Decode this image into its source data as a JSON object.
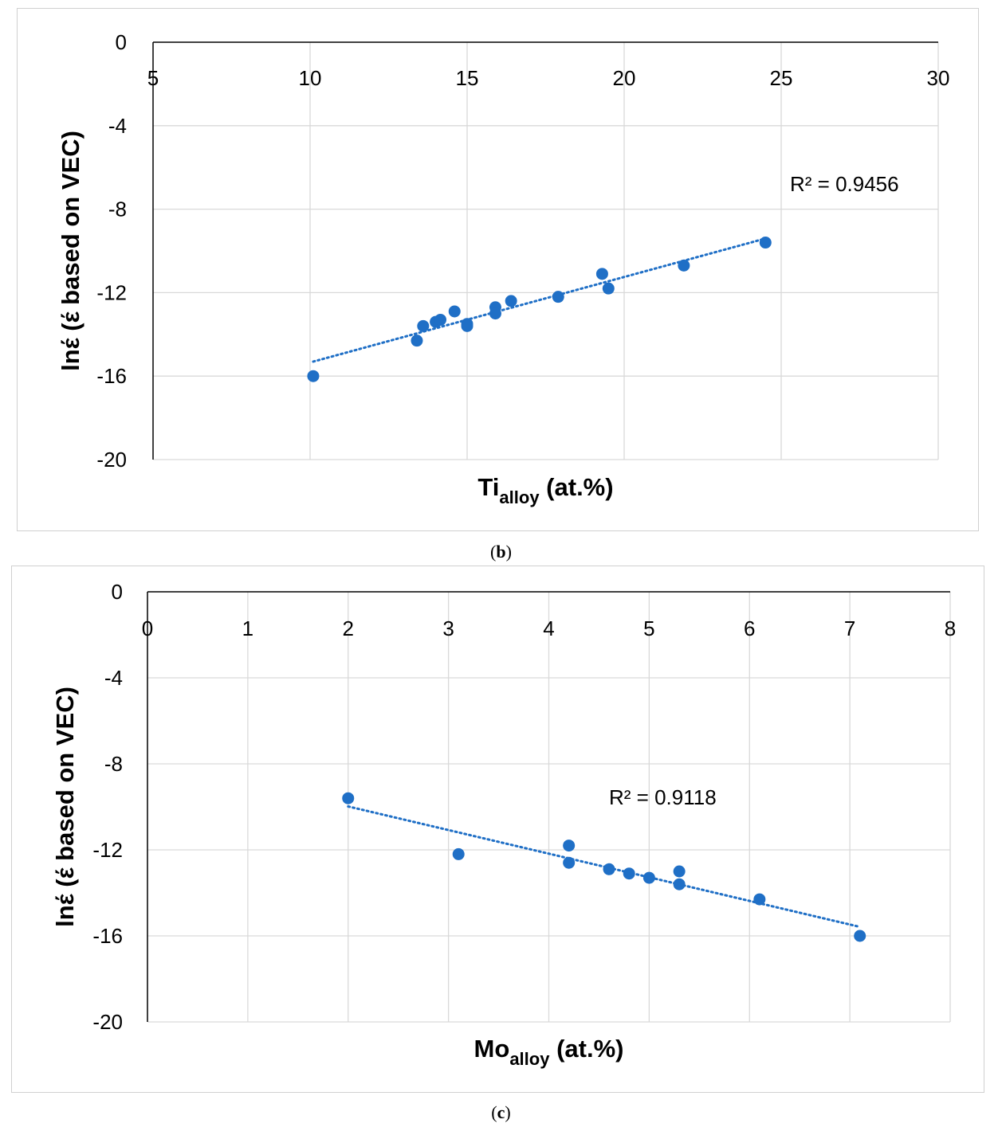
{
  "chart_data": [
    {
      "type": "scatter",
      "panel": "b",
      "caption_prefix": "(",
      "caption_letter": "b",
      "caption_suffix": ")",
      "ylabel": "lnέ (έ based on VEC)",
      "xlabel_main": "Ti",
      "xlabel_sub": "alloy",
      "xlabel_unit": " (at.%)",
      "xlim": [
        5,
        30
      ],
      "ylim": [
        -20,
        0
      ],
      "xticks": [
        "5",
        "10",
        "15",
        "20",
        "25",
        "30"
      ],
      "yticks": [
        "0",
        "-4",
        "-8",
        "-12",
        "-16",
        "-20"
      ],
      "grid": true,
      "trendline": {
        "type": "linear",
        "dotted": true,
        "x_start": 10.1,
        "x_end": 24.5,
        "r2_label": "R² = 0.9456"
      },
      "marker_color": "#1f6fc6",
      "points": [
        {
          "x": 10.1,
          "y": -16.0
        },
        {
          "x": 13.4,
          "y": -14.3
        },
        {
          "x": 13.6,
          "y": -13.6
        },
        {
          "x": 14.0,
          "y": -13.4
        },
        {
          "x": 14.15,
          "y": -13.3
        },
        {
          "x": 14.6,
          "y": -12.9
        },
        {
          "x": 15.0,
          "y": -13.5
        },
        {
          "x": 15.0,
          "y": -13.6
        },
        {
          "x": 15.9,
          "y": -12.7
        },
        {
          "x": 15.9,
          "y": -13.0
        },
        {
          "x": 16.4,
          "y": -12.4
        },
        {
          "x": 17.9,
          "y": -12.2
        },
        {
          "x": 19.3,
          "y": -11.1
        },
        {
          "x": 19.5,
          "y": -11.8
        },
        {
          "x": 21.9,
          "y": -10.7
        },
        {
          "x": 24.5,
          "y": -9.6
        }
      ]
    },
    {
      "type": "scatter",
      "panel": "c",
      "caption_prefix": "(",
      "caption_letter": "c",
      "caption_suffix": ")",
      "ylabel": "lnέ (έ based on VEC)",
      "xlabel_main": "Mo",
      "xlabel_sub": "alloy",
      "xlabel_unit": " (at.%)",
      "xlim": [
        0,
        8
      ],
      "ylim": [
        -20,
        0
      ],
      "xticks": [
        "0",
        "1",
        "2",
        "3",
        "4",
        "5",
        "6",
        "7",
        "8"
      ],
      "yticks": [
        "0",
        "-4",
        "-8",
        "-12",
        "-16",
        "-20"
      ],
      "grid": true,
      "trendline": {
        "type": "linear",
        "dotted": true,
        "x_start": 2.0,
        "x_end": 7.1,
        "r2_label": "R² = 0.9118"
      },
      "marker_color": "#1f6fc6",
      "points": [
        {
          "x": 2.0,
          "y": -9.6
        },
        {
          "x": 3.1,
          "y": -12.2
        },
        {
          "x": 4.2,
          "y": -11.8
        },
        {
          "x": 4.2,
          "y": -12.6
        },
        {
          "x": 4.6,
          "y": -12.9
        },
        {
          "x": 4.8,
          "y": -13.1
        },
        {
          "x": 5.0,
          "y": -13.3
        },
        {
          "x": 5.3,
          "y": -13.0
        },
        {
          "x": 5.3,
          "y": -13.6
        },
        {
          "x": 6.1,
          "y": -14.3
        },
        {
          "x": 7.1,
          "y": -16.0
        }
      ]
    }
  ]
}
